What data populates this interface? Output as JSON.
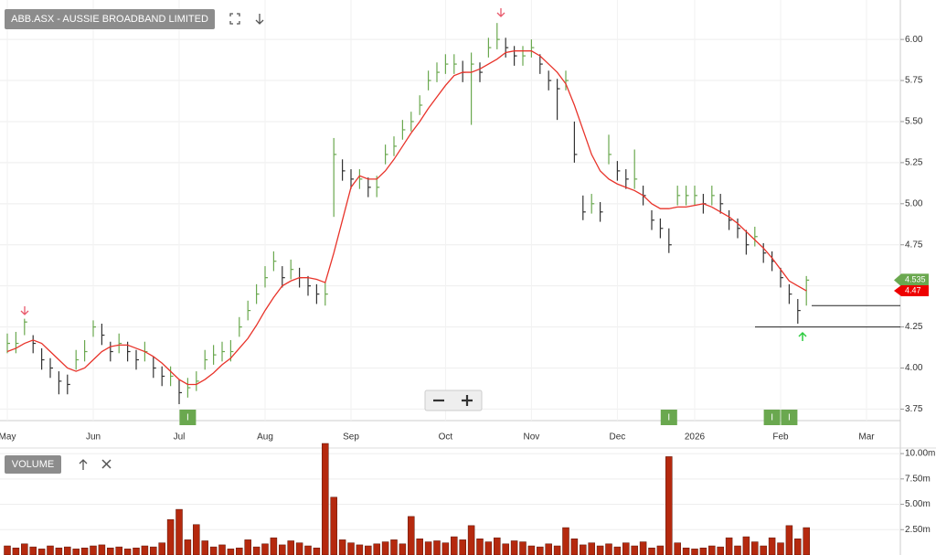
{
  "chart_data": {
    "type": "ohlc",
    "title": "ABB.ASX - AUSSIE BROADBAND LIMITED",
    "categories": [
      "May",
      null,
      null,
      null,
      null,
      null,
      null,
      null,
      null,
      null,
      "Jun",
      null,
      null,
      null,
      null,
      null,
      null,
      null,
      null,
      null,
      "Jul",
      null,
      null,
      null,
      null,
      null,
      null,
      null,
      null,
      null,
      "Aug",
      null,
      null,
      null,
      null,
      null,
      null,
      null,
      null,
      null,
      "Sep",
      null,
      null,
      null,
      null,
      null,
      null,
      null,
      null,
      null,
      null,
      "Oct",
      null,
      null,
      null,
      null,
      null,
      null,
      null,
      null,
      null,
      "Nov",
      null,
      null,
      null,
      null,
      null,
      null,
      null,
      null,
      null,
      "Dec",
      null,
      null,
      null,
      null,
      null,
      null,
      null,
      null,
      "2026",
      null,
      null,
      null,
      null,
      null,
      null,
      null,
      null,
      null,
      "Feb",
      null,
      null,
      null,
      null,
      null,
      null,
      null,
      null,
      null,
      "Mar",
      null,
      null,
      null
    ],
    "high": [
      4.21,
      4.22,
      4.3,
      4.2,
      4.12,
      4.06,
      3.98,
      3.96,
      4.11,
      4.17,
      4.29,
      4.27,
      4.16,
      4.21,
      4.16,
      4.11,
      4.16,
      4.07,
      4.01,
      4.01,
      3.93,
      3.94,
      3.98,
      4.11,
      4.14,
      4.16,
      4.17,
      4.31,
      4.41,
      4.51,
      4.62,
      4.71,
      4.62,
      4.66,
      4.61,
      4.56,
      4.51,
      4.52,
      5.4,
      5.27,
      5.21,
      5.21,
      5.16,
      5.17,
      5.36,
      5.41,
      5.51,
      5.56,
      5.66,
      5.81,
      5.86,
      5.91,
      5.91,
      5.87,
      5.92,
      5.86,
      6.01,
      6.1,
      6.01,
      5.96,
      5.96,
      6.0,
      5.91,
      5.81,
      5.76,
      5.81,
      5.5,
      5.05,
      5.06,
      5.01,
      5.42,
      5.26,
      5.21,
      5.33,
      5.11,
      4.96,
      4.91,
      4.85,
      5.11,
      5.11,
      5.11,
      5.06,
      5.11,
      5.06,
      4.96,
      4.91,
      4.84,
      4.86,
      4.76,
      4.71,
      4.61,
      4.51,
      4.42,
      4.56,
      null,
      null,
      null,
      null,
      null,
      null,
      null,
      null,
      null,
      null
    ],
    "low": [
      4.09,
      4.09,
      4.2,
      4.09,
      3.99,
      3.94,
      3.84,
      3.84,
      3.99,
      4.04,
      4.19,
      4.14,
      4.04,
      4.09,
      4.04,
      3.99,
      4.04,
      3.94,
      3.89,
      3.89,
      3.78,
      3.82,
      3.86,
      3.99,
      4.02,
      4.04,
      4.04,
      4.19,
      4.29,
      4.39,
      4.49,
      4.59,
      4.49,
      4.54,
      4.49,
      4.44,
      4.39,
      4.38,
      4.92,
      5.14,
      5.09,
      5.09,
      5.04,
      5.04,
      5.24,
      5.29,
      5.39,
      5.44,
      5.54,
      5.69,
      5.74,
      5.79,
      5.79,
      5.74,
      5.48,
      5.74,
      5.89,
      5.94,
      5.89,
      5.84,
      5.84,
      5.89,
      5.79,
      5.69,
      5.51,
      5.69,
      5.25,
      4.9,
      4.94,
      4.89,
      5.24,
      5.14,
      5.09,
      5.09,
      4.99,
      4.84,
      4.79,
      4.7,
      4.99,
      4.99,
      4.99,
      4.94,
      4.99,
      4.94,
      4.84,
      4.79,
      4.69,
      4.74,
      4.64,
      4.59,
      4.49,
      4.39,
      4.27,
      4.38,
      null,
      null,
      null,
      null,
      null,
      null,
      null,
      null,
      null,
      null
    ],
    "close": [
      4.15,
      4.15,
      4.28,
      4.15,
      4.05,
      4.0,
      3.92,
      3.9,
      4.05,
      4.1,
      4.25,
      4.2,
      4.1,
      4.15,
      4.1,
      4.05,
      4.1,
      4.0,
      3.95,
      3.95,
      3.85,
      3.88,
      3.92,
      4.05,
      4.08,
      4.1,
      4.1,
      4.25,
      4.35,
      4.45,
      4.55,
      4.65,
      4.55,
      4.6,
      4.55,
      4.5,
      4.45,
      4.45,
      5.3,
      5.2,
      5.15,
      5.15,
      5.1,
      5.1,
      5.3,
      5.35,
      5.45,
      5.5,
      5.6,
      5.75,
      5.8,
      5.85,
      5.85,
      5.8,
      5.85,
      5.8,
      5.95,
      6.0,
      5.95,
      5.9,
      5.9,
      5.95,
      5.85,
      5.75,
      5.7,
      5.75,
      5.3,
      4.95,
      5.0,
      4.95,
      5.3,
      5.2,
      5.15,
      5.15,
      5.05,
      4.9,
      4.85,
      4.75,
      5.05,
      5.05,
      5.05,
      5.0,
      5.05,
      5.0,
      4.9,
      4.85,
      4.75,
      4.8,
      4.7,
      4.65,
      4.55,
      4.45,
      4.35,
      4.535,
      null,
      null,
      null,
      null,
      null,
      null,
      null,
      null,
      null,
      null
    ],
    "up_color": "#6aa84f",
    "down_color": "#333333",
    "moving_average": {
      "color": "#e8332a",
      "values": [
        4.1,
        4.12,
        4.15,
        4.17,
        4.15,
        4.1,
        4.05,
        4.0,
        3.98,
        4.0,
        4.05,
        4.1,
        4.13,
        4.14,
        4.14,
        4.12,
        4.1,
        4.07,
        4.03,
        3.98,
        3.93,
        3.9,
        3.9,
        3.93,
        3.97,
        4.02,
        4.06,
        4.12,
        4.18,
        4.26,
        4.35,
        4.43,
        4.5,
        4.53,
        4.55,
        4.55,
        4.54,
        4.52,
        4.7,
        4.9,
        5.1,
        5.17,
        5.15,
        5.15,
        5.2,
        5.27,
        5.35,
        5.43,
        5.5,
        5.58,
        5.65,
        5.72,
        5.78,
        5.8,
        5.8,
        5.82,
        5.85,
        5.88,
        5.92,
        5.93,
        5.93,
        5.93,
        5.9,
        5.85,
        5.8,
        5.73,
        5.6,
        5.45,
        5.3,
        5.2,
        5.15,
        5.12,
        5.1,
        5.08,
        5.05,
        5.0,
        4.97,
        4.97,
        4.98,
        4.98,
        4.99,
        5.0,
        4.98,
        4.95,
        4.92,
        4.88,
        4.83,
        4.78,
        4.73,
        4.67,
        4.6,
        4.53,
        4.5,
        4.47,
        null,
        null,
        null,
        null,
        null,
        null,
        null,
        null,
        null,
        null
      ]
    },
    "events": [
      null,
      null,
      null,
      null,
      null,
      null,
      null,
      null,
      null,
      null,
      null,
      null,
      null,
      null,
      null,
      null,
      null,
      null,
      null,
      null,
      null,
      "I",
      null,
      null,
      null,
      null,
      null,
      null,
      null,
      null,
      null,
      null,
      null,
      null,
      null,
      null,
      null,
      null,
      null,
      null,
      null,
      null,
      null,
      null,
      null,
      null,
      null,
      null,
      null,
      null,
      null,
      null,
      null,
      null,
      null,
      null,
      null,
      null,
      null,
      null,
      null,
      null,
      null,
      null,
      null,
      null,
      null,
      null,
      null,
      null,
      null,
      null,
      null,
      null,
      null,
      null,
      null,
      "I",
      null,
      null,
      null,
      null,
      null,
      null,
      null,
      null,
      null,
      null,
      null,
      "I",
      null,
      "I",
      null,
      null,
      null,
      null,
      null,
      null,
      null,
      null,
      null,
      null,
      null,
      null
    ],
    "levels": [
      4.38,
      4.25
    ],
    "ylim": [
      3.68,
      6.24
    ],
    "yticks": [
      {
        "value": 3.75,
        "label": "3.75"
      },
      {
        "value": 4,
        "label": "4.00"
      },
      {
        "value": 4.25,
        "label": "4.25"
      },
      {
        "value": 4.5,
        "label": "4.50"
      },
      {
        "value": 4.75,
        "label": "4.75"
      },
      {
        "value": 5,
        "label": "5.00"
      },
      {
        "value": 5.25,
        "label": "5.25"
      },
      {
        "value": 5.5,
        "label": "5.50"
      },
      {
        "value": 5.75,
        "label": "5.75"
      },
      {
        "value": 6,
        "label": "6.00"
      }
    ],
    "grid": true,
    "volume": {
      "label": "VOLUME",
      "color": "#b5290e",
      "values": [
        900000,
        700000,
        1100000,
        800000,
        600000,
        900000,
        700000,
        800000,
        600000,
        700000,
        900000,
        1000000,
        700000,
        800000,
        600000,
        700000,
        900000,
        800000,
        1200000,
        3500000,
        4500000,
        1500000,
        3000000,
        1400000,
        800000,
        1000000,
        600000,
        700000,
        1500000,
        800000,
        1100000,
        1700000,
        1000000,
        1400000,
        1200000,
        900000,
        700000,
        11000000,
        5700000,
        1500000,
        1200000,
        1000000,
        900000,
        1100000,
        1300000,
        1500000,
        1100000,
        3800000,
        1600000,
        1300000,
        1400000,
        1200000,
        1800000,
        1500000,
        2900000,
        1600000,
        1300000,
        1700000,
        1100000,
        1400000,
        1300000,
        900000,
        800000,
        1100000,
        900000,
        2700000,
        1600000,
        1000000,
        1200000,
        900000,
        1100000,
        800000,
        1200000,
        900000,
        1300000,
        700000,
        900000,
        9700000,
        1200000,
        700000,
        600000,
        700000,
        900000,
        800000,
        1700000,
        900000,
        1800000,
        1300000,
        900000,
        1700000,
        1200000,
        2900000,
        1600000,
        2700000,
        null,
        null,
        null,
        null,
        null,
        null,
        null,
        null,
        null,
        null
      ],
      "ylim": [
        0,
        11000000
      ],
      "yticks": [
        {
          "value": 2500000,
          "label": "2.50m"
        },
        {
          "value": 5000000,
          "label": "5.00m"
        },
        {
          "value": 7500000,
          "label": "7.50m"
        },
        {
          "value": 10000000,
          "label": "10.00m"
        }
      ]
    }
  }
}
